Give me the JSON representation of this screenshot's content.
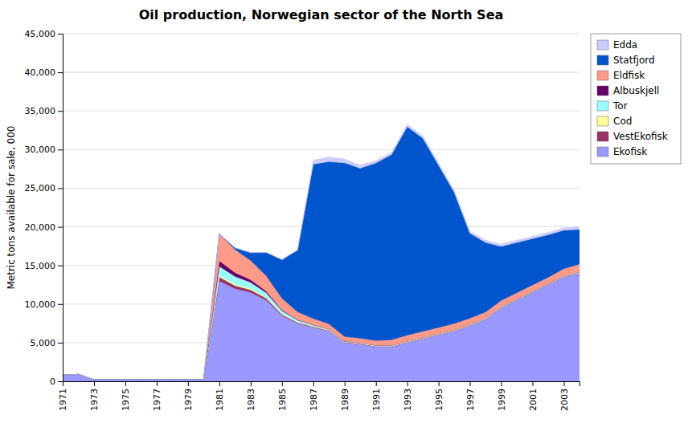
{
  "chart_data": {
    "type": "area",
    "stacked": true,
    "title": "Oil production, Norwegian sector of the North Sea",
    "ylabel": "Metric tons available for sale, 000",
    "x": [
      1971,
      1972,
      1973,
      1974,
      1975,
      1976,
      1977,
      1978,
      1979,
      1980,
      1981,
      1982,
      1983,
      1984,
      1985,
      1986,
      1987,
      1988,
      1989,
      1990,
      1991,
      1992,
      1993,
      1994,
      1995,
      1996,
      1997,
      1998,
      1999,
      2000,
      2001,
      2002,
      2003,
      2004
    ],
    "series": [
      {
        "name": "Ekofisk",
        "color": "#9999ff",
        "values": [
          800,
          900,
          200,
          200,
          200,
          200,
          200,
          200,
          200,
          200,
          13000,
          12000,
          11500,
          10500,
          8500,
          7500,
          7000,
          6500,
          5000,
          4800,
          4500,
          4500,
          5000,
          5500,
          6000,
          6500,
          7200,
          8000,
          9500,
          10500,
          11500,
          12500,
          13500,
          14000
        ]
      },
      {
        "name": "VestEkofisk",
        "color": "#993366",
        "values": [
          0,
          0,
          0,
          0,
          0,
          0,
          0,
          0,
          0,
          0,
          500,
          400,
          350,
          250,
          150,
          100,
          80,
          70,
          60,
          60,
          50,
          50,
          50,
          50,
          50,
          50,
          50,
          50,
          50,
          50,
          50,
          50,
          50,
          50
        ]
      },
      {
        "name": "Cod",
        "color": "#ffff99",
        "values": [
          0,
          0,
          0,
          0,
          0,
          0,
          0,
          0,
          0,
          0,
          200,
          180,
          150,
          120,
          100,
          80,
          60,
          50,
          40,
          40,
          40,
          40,
          40,
          40,
          40,
          40,
          40,
          40,
          40,
          40,
          40,
          40,
          40,
          40
        ]
      },
      {
        "name": "Tor",
        "color": "#99ffff",
        "values": [
          0,
          0,
          0,
          0,
          0,
          0,
          0,
          0,
          0,
          0,
          1200,
          1000,
          800,
          600,
          400,
          250,
          150,
          100,
          80,
          80,
          80,
          80,
          80,
          80,
          80,
          80,
          80,
          80,
          80,
          80,
          80,
          80,
          80,
          80
        ]
      },
      {
        "name": "Albuskjell",
        "color": "#660066",
        "values": [
          0,
          0,
          0,
          0,
          0,
          0,
          0,
          0,
          0,
          0,
          700,
          500,
          350,
          200,
          100,
          50,
          30,
          20,
          10,
          0,
          0,
          0,
          0,
          0,
          0,
          0,
          0,
          0,
          0,
          0,
          0,
          0,
          0,
          0
        ]
      },
      {
        "name": "Eldfisk",
        "color": "#ff9988",
        "values": [
          0,
          0,
          0,
          0,
          0,
          0,
          0,
          0,
          0,
          0,
          3500,
          3000,
          2500,
          2000,
          1500,
          1000,
          800,
          700,
          600,
          600,
          600,
          700,
          800,
          800,
          800,
          800,
          800,
          800,
          800,
          800,
          800,
          800,
          900,
          1000
        ]
      },
      {
        "name": "Statfjord",
        "color": "#0055cc",
        "values": [
          0,
          0,
          0,
          0,
          0,
          0,
          0,
          0,
          0,
          0,
          0,
          200,
          1000,
          3000,
          5000,
          8000,
          20000,
          21000,
          22500,
          22000,
          23000,
          24000,
          27000,
          25000,
          21000,
          17000,
          11000,
          9000,
          7000,
          6500,
          6000,
          5500,
          5000,
          4500
        ]
      },
      {
        "name": "Edda",
        "color": "#ccccff",
        "values": [
          0,
          0,
          0,
          0,
          0,
          0,
          0,
          0,
          0,
          0,
          0,
          0,
          0,
          0,
          0,
          0,
          500,
          600,
          500,
          400,
          300,
          300,
          300,
          300,
          300,
          300,
          300,
          300,
          300,
          300,
          300,
          300,
          300,
          300
        ]
      }
    ],
    "xlim": [
      1971,
      2004
    ],
    "xticks": [
      1971,
      1973,
      1975,
      1977,
      1979,
      1981,
      1983,
      1985,
      1987,
      1989,
      1991,
      1993,
      1995,
      1997,
      1999,
      2001,
      2003
    ],
    "ylim": [
      0,
      45000
    ],
    "yticks": [
      0,
      {
        "value": 5000,
        "label": "5,000"
      },
      {
        "value": 10000,
        "label": "10,000"
      },
      {
        "value": 15000,
        "label": "15,000"
      },
      {
        "value": 20000,
        "label": "20,000"
      },
      {
        "value": 25000,
        "label": "25,000"
      },
      {
        "value": 30000,
        "label": "30,000"
      },
      {
        "value": 35000,
        "label": "35,000"
      },
      {
        "value": 40000,
        "label": "40,000"
      },
      {
        "value": 45000,
        "label": "45,000"
      }
    ],
    "grid": true,
    "legend": "upper right"
  }
}
